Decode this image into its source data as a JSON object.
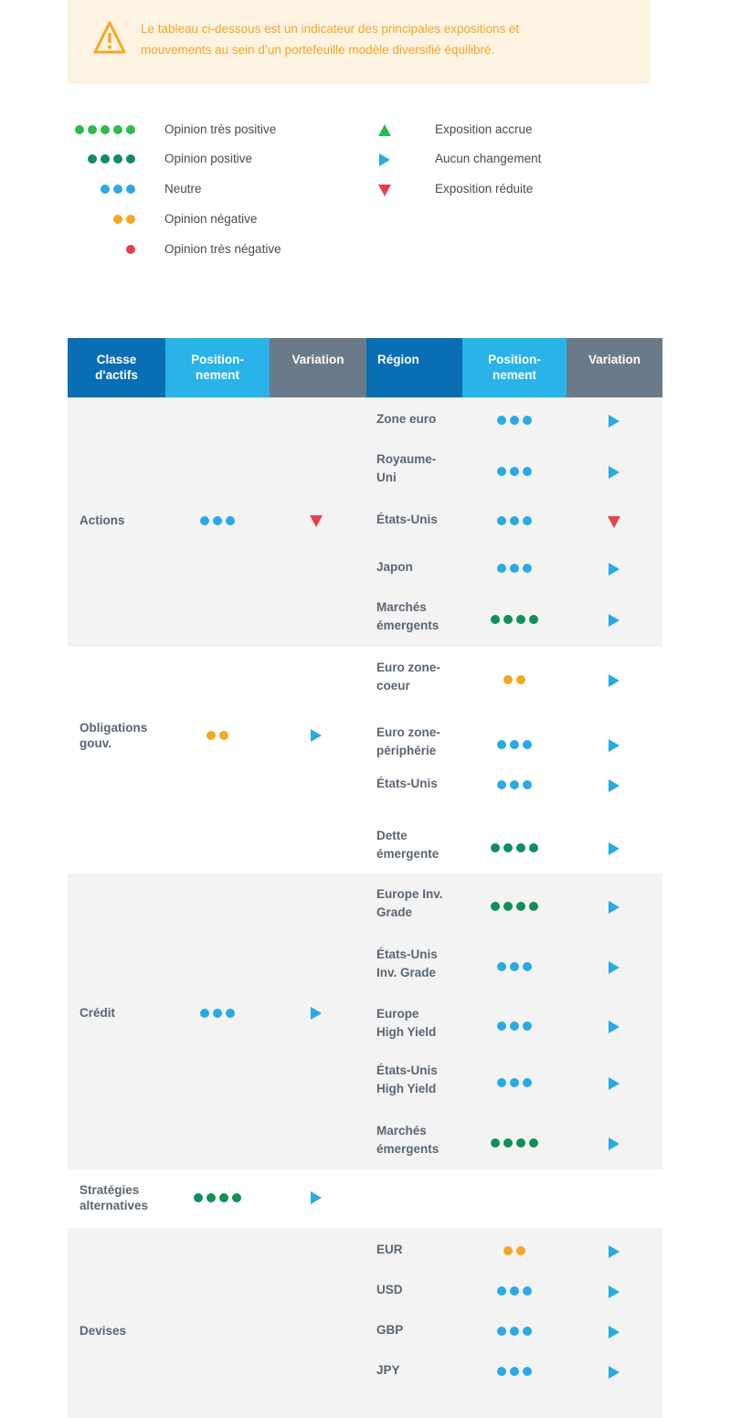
{
  "alert": {
    "icon": "warning-icon",
    "text_line1": "Le tableau ci-dessous est un indicateur des principales expositions et",
    "text_line2": "mouvements au sein d’un portefeuille modèle diversifié équilibré."
  },
  "legend": {
    "opinions": [
      {
        "label": "Opinion très positive",
        "dots": 5,
        "color": "#2dba4e"
      },
      {
        "label": "Opinion positive",
        "dots": 4,
        "color": "#0f8f5a"
      },
      {
        "label": "Neutre",
        "dots": 3,
        "color": "#29aae2"
      },
      {
        "label": "Opinion négative",
        "dots": 2,
        "color": "#f5a623"
      },
      {
        "label": "Opinion très négative",
        "dots": 1,
        "color": "#e8404a"
      }
    ],
    "changes": [
      {
        "label": "Exposition accrue",
        "icon": "up-triangle-icon",
        "color": "#2dba4e"
      },
      {
        "label": "Aucun changement",
        "icon": "right-triangle-icon",
        "color": "#29aae2"
      },
      {
        "label": "Exposition réduite",
        "icon": "down-triangle-icon",
        "color": "#e8404a"
      }
    ]
  },
  "colors": {
    "header_dark_blue": "#0a6eb4",
    "header_light_blue": "#29b3e8",
    "header_gray": "#6b7a88",
    "very_positive": "#2dba4e",
    "positive": "#0f8f5a",
    "neutral": "#29aae2",
    "negative": "#f5a623",
    "very_negative": "#e8404a"
  },
  "table": {
    "headers": {
      "asset_class": [
        "Classe",
        "d'actifs"
      ],
      "positioning1": [
        "Position-",
        "nement"
      ],
      "variation1": "Variation",
      "region": "Région",
      "positioning2": [
        "Position-",
        "nement"
      ],
      "variation2": "Variation"
    },
    "groups": [
      {
        "label": [
          "Actions"
        ],
        "dots": 3,
        "variation": "down",
        "regions": [
          {
            "name": [
              "Zone euro"
            ],
            "dots": 3,
            "variation": "right"
          },
          {
            "name": [
              "Royaume-",
              "Uni"
            ],
            "dots": 3,
            "variation": "right"
          },
          {
            "name": [
              "États-Unis"
            ],
            "dots": 3,
            "variation": "down"
          },
          {
            "name": [
              "Japon"
            ],
            "dots": 3,
            "variation": "right"
          },
          {
            "name": [
              "Marchés",
              "émergents"
            ],
            "dots": 4,
            "variation": "right"
          }
        ]
      },
      {
        "label": [
          "Obligations",
          "gouv."
        ],
        "dots": 2,
        "variation": "right",
        "regions": [
          {
            "name": [
              "Euro zone-",
              "coeur"
            ],
            "dots": 2,
            "variation": "right"
          },
          {
            "name": [
              "Euro zone-",
              "périphérie"
            ],
            "dots": 3,
            "variation": "right"
          },
          {
            "name": [
              "États-Unis"
            ],
            "dots": 3,
            "variation": "right"
          },
          {
            "name": [
              "Dette",
              "émergente"
            ],
            "dots": 4,
            "variation": "right"
          }
        ]
      },
      {
        "label": [
          "Crédit"
        ],
        "dots": 3,
        "variation": "right",
        "regions": [
          {
            "name": [
              "Europe Inv.",
              "Grade"
            ],
            "dots": 4,
            "variation": "right"
          },
          {
            "name": [
              "États-Unis",
              "Inv. Grade"
            ],
            "dots": 3,
            "variation": "right"
          },
          {
            "name": [
              "Europe",
              "High Yield"
            ],
            "dots": 3,
            "variation": "right"
          },
          {
            "name": [
              "États-Unis",
              "High Yield"
            ],
            "dots": 3,
            "variation": "right"
          },
          {
            "name": [
              "Marchés",
              "émergents"
            ],
            "dots": 4,
            "variation": "right"
          }
        ]
      },
      {
        "label": [
          "Stratégies",
          "alternatives"
        ],
        "dots": 4,
        "variation": "right",
        "regions": []
      },
      {
        "label": [
          "Devises"
        ],
        "dots": 0,
        "variation": "",
        "regions": [
          {
            "name": [
              "EUR"
            ],
            "dots": 2,
            "variation": "right"
          },
          {
            "name": [
              "USD"
            ],
            "dots": 3,
            "variation": "right"
          },
          {
            "name": [
              "GBP"
            ],
            "dots": 3,
            "variation": "right"
          },
          {
            "name": [
              "JPY"
            ],
            "dots": 3,
            "variation": "right"
          }
        ]
      }
    ]
  }
}
